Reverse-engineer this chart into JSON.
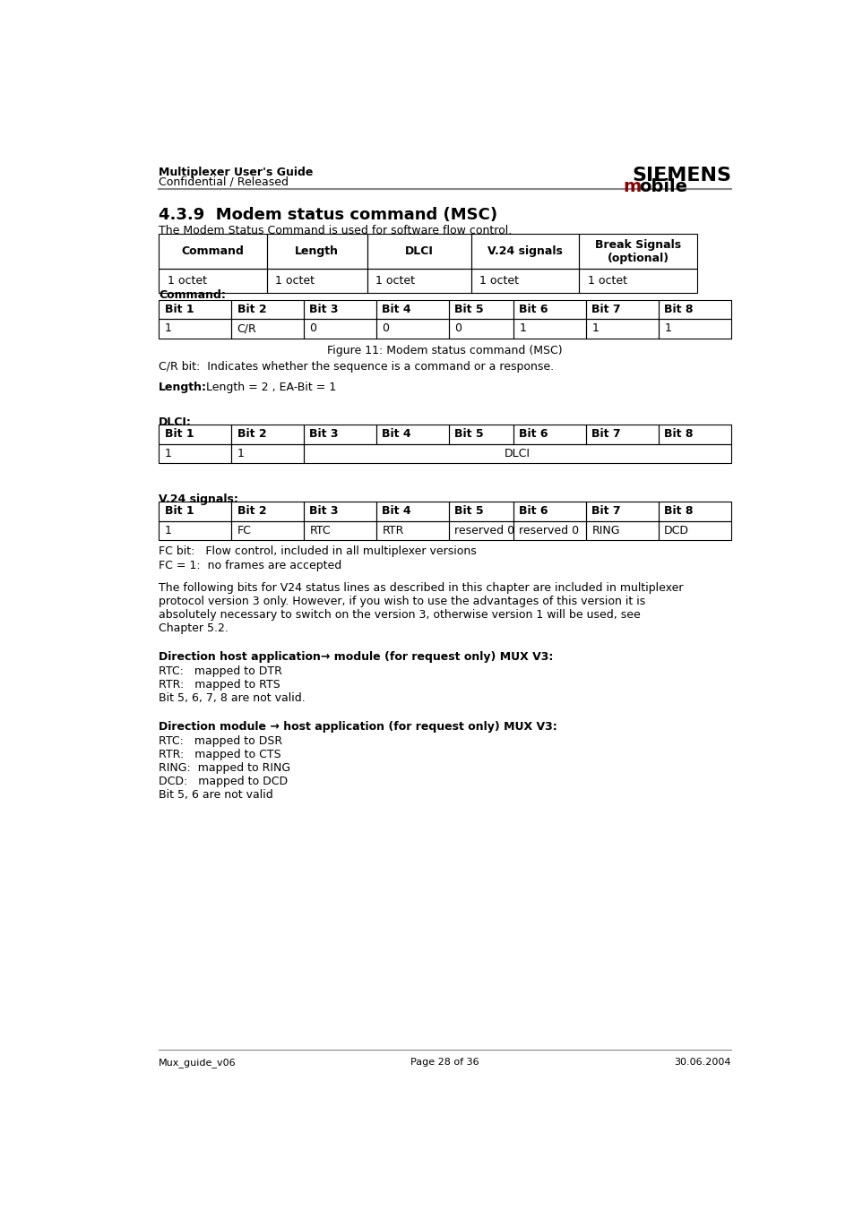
{
  "page_width": 9.54,
  "page_height": 13.51,
  "bg_color": "#ffffff",
  "header_left_line1": "Multiplexer User's Guide",
  "header_left_line2": "Confidential / Released",
  "header_right_line1": "SIEMENS",
  "header_right_line2_m": "m",
  "header_right_line2_rest": "obile",
  "siemens_color": "#000000",
  "mobile_m_color": "#8B0000",
  "section_title": "4.3.9  Modem status command (MSC)",
  "intro_text": "The Modem Status Command is used for software flow control.",
  "table1_headers": [
    "Command",
    "Length",
    "DLCI",
    "V.24 signals",
    "Break Signals\n(optional)"
  ],
  "table1_row": [
    "1 octet",
    "1 octet",
    "1 octet",
    "1 octet",
    "1 octet"
  ],
  "command_label": "Command:",
  "bit_headers": [
    "Bit 1",
    "Bit 2",
    "Bit 3",
    "Bit 4",
    "Bit 5",
    "Bit 6",
    "Bit 7",
    "Bit 8"
  ],
  "command_row": [
    "1",
    "C/R",
    "0",
    "0",
    "0",
    "1",
    "1",
    "1"
  ],
  "figure_caption": "Figure 11: Modem status command (MSC)",
  "cr_bit_text": "C/R bit:  Indicates whether the sequence is a command or a response.",
  "length_bold": "Length:",
  "length_normal": " Length = 2 , EA-Bit = 1",
  "dlci_label": "DLCI:",
  "dlci_row_col1": "1",
  "dlci_row_col2": "1",
  "dlci_row_merged": "DLCI",
  "v24_label": "V.24 signals:",
  "v24_row": [
    "1",
    "FC",
    "RTC",
    "RTR",
    "reserved 0",
    "reserved 0",
    "RING",
    "DCD"
  ],
  "fc_bit_line1": "FC bit:   Flow control, included in all multiplexer versions",
  "fc_bit_line2": "FC = 1:  no frames are accepted",
  "para1_lines": [
    "The following bits for V24 status lines as described in this chapter are included in multiplexer",
    "protocol version 3 only. However, if you wish to use the advantages of this version it is",
    "absolutely necessary to switch on the version 3, otherwise version 1 will be used, see",
    "Chapter 5.2."
  ],
  "dir1_title": "Direction host application→ module (for request only) MUX V3:",
  "dir1_lines": [
    "RTC:   mapped to DTR",
    "RTR:   mapped to RTS",
    "Bit 5, 6, 7, 8 are not valid."
  ],
  "dir2_title": "Direction module → host application (for request only) MUX V3:",
  "dir2_lines": [
    "RTC:   mapped to DSR",
    "RTR:   mapped to CTS",
    "RING:  mapped to RING",
    "DCD:   mapped to DCD",
    "Bit 5, 6 are not valid"
  ],
  "footer_left": "Mux_guide_v06",
  "footer_center": "Page 28 of 36",
  "footer_right": "30.06.2004"
}
